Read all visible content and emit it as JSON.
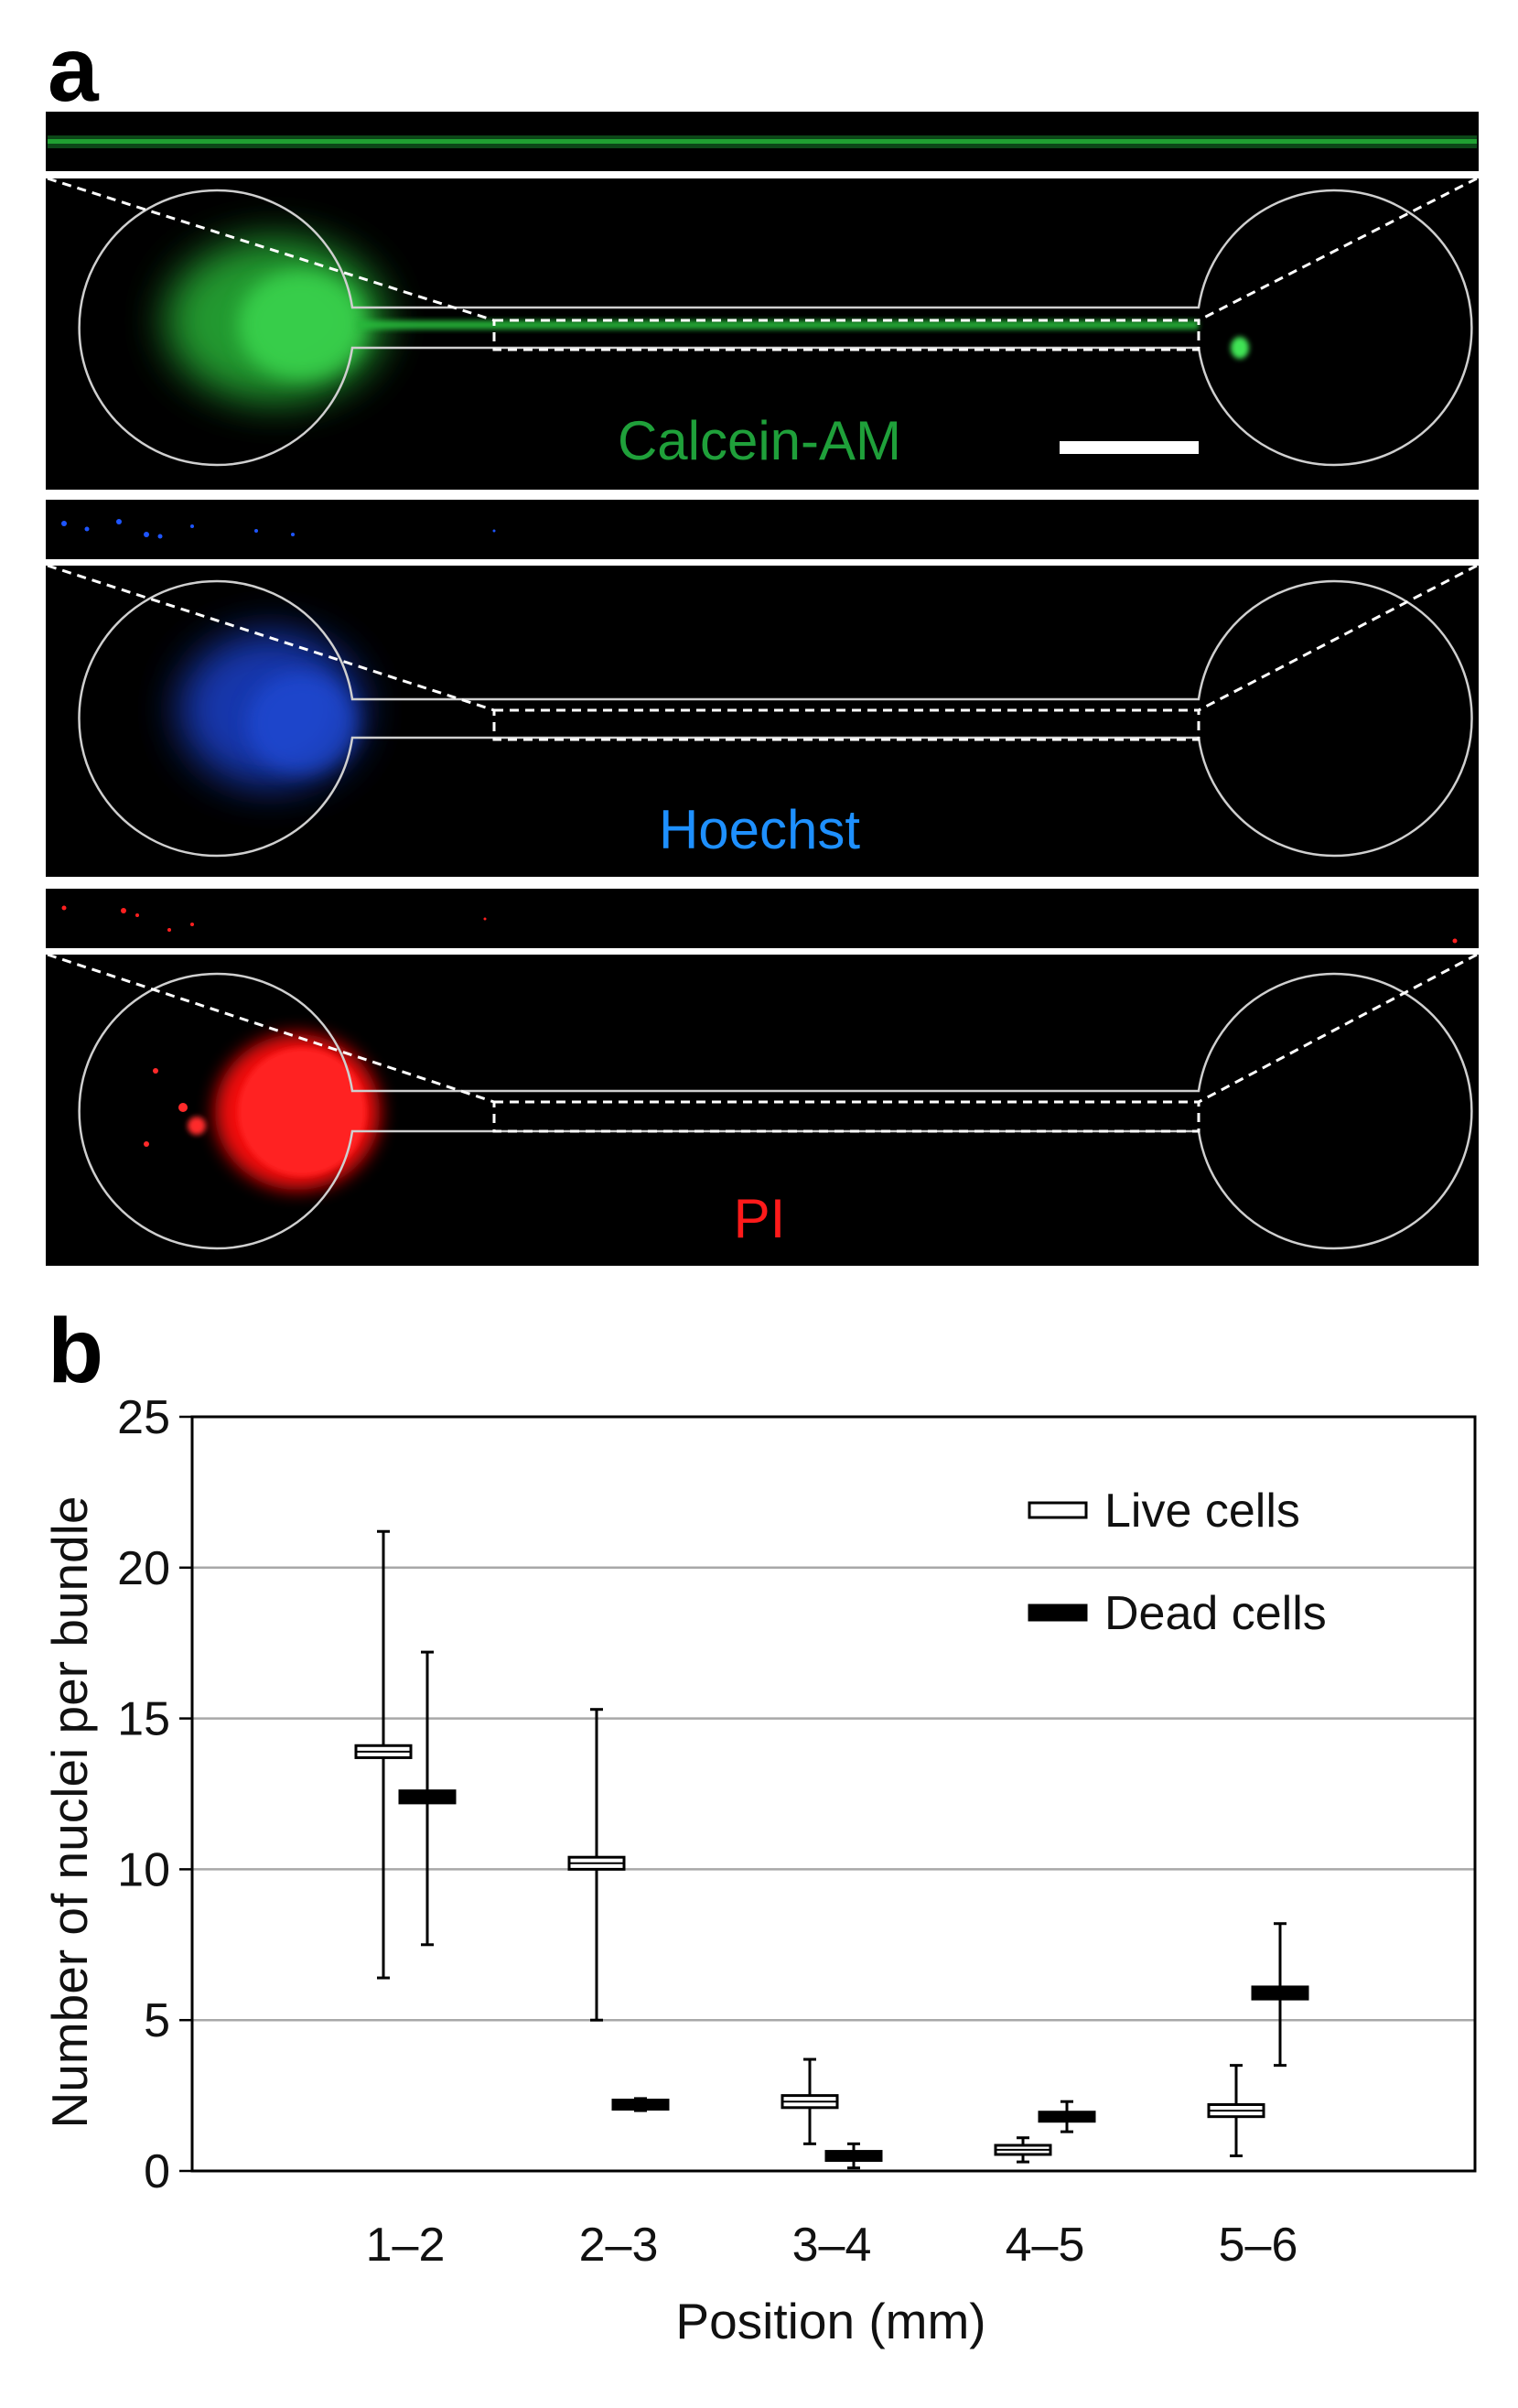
{
  "panel_a": {
    "letter": "a",
    "stains": [
      {
        "name": "Calcein-AM",
        "color": "#1fa03a",
        "glow": "#2ecc40"
      },
      {
        "name": "Hoechst",
        "color": "#1e90ff",
        "glow": "#1a44d8"
      },
      {
        "name": "PI",
        "color": "#ff1a1a",
        "glow": "#ff1010"
      }
    ]
  },
  "panel_b": {
    "letter": "b"
  },
  "chart_data": {
    "type": "box",
    "categories": [
      "1–2",
      "2–3",
      "3–4",
      "4–5",
      "5–6"
    ],
    "xlabel": "Position (mm)",
    "ylabel": "Number of nuclei per bundle",
    "ylim": [
      0,
      25
    ],
    "yticks": [
      0,
      5,
      10,
      15,
      20,
      25
    ],
    "grid": true,
    "legend_position": "top-right",
    "series": [
      {
        "name": "Live cells",
        "style": "open",
        "median": [
          13.9,
          10.2,
          2.3,
          0.7,
          2.0
        ],
        "box_low": [
          13.7,
          10.0,
          2.1,
          0.55,
          1.8
        ],
        "box_high": [
          14.1,
          10.4,
          2.5,
          0.85,
          2.2
        ],
        "whisker_low": [
          6.4,
          5.0,
          0.9,
          0.3,
          0.5
        ],
        "whisker_high": [
          21.2,
          15.3,
          3.7,
          1.1,
          3.5
        ]
      },
      {
        "name": "Dead cells",
        "style": "filled",
        "median": [
          12.4,
          2.2,
          0.5,
          1.8,
          5.9
        ],
        "box_low": [
          12.2,
          2.05,
          0.35,
          1.65,
          5.7
        ],
        "box_high": [
          12.6,
          2.35,
          0.65,
          1.95,
          6.1
        ],
        "whisker_low": [
          7.5,
          2.0,
          0.1,
          1.3,
          3.5
        ],
        "whisker_high": [
          17.2,
          2.4,
          0.9,
          2.3,
          8.2
        ]
      }
    ]
  }
}
